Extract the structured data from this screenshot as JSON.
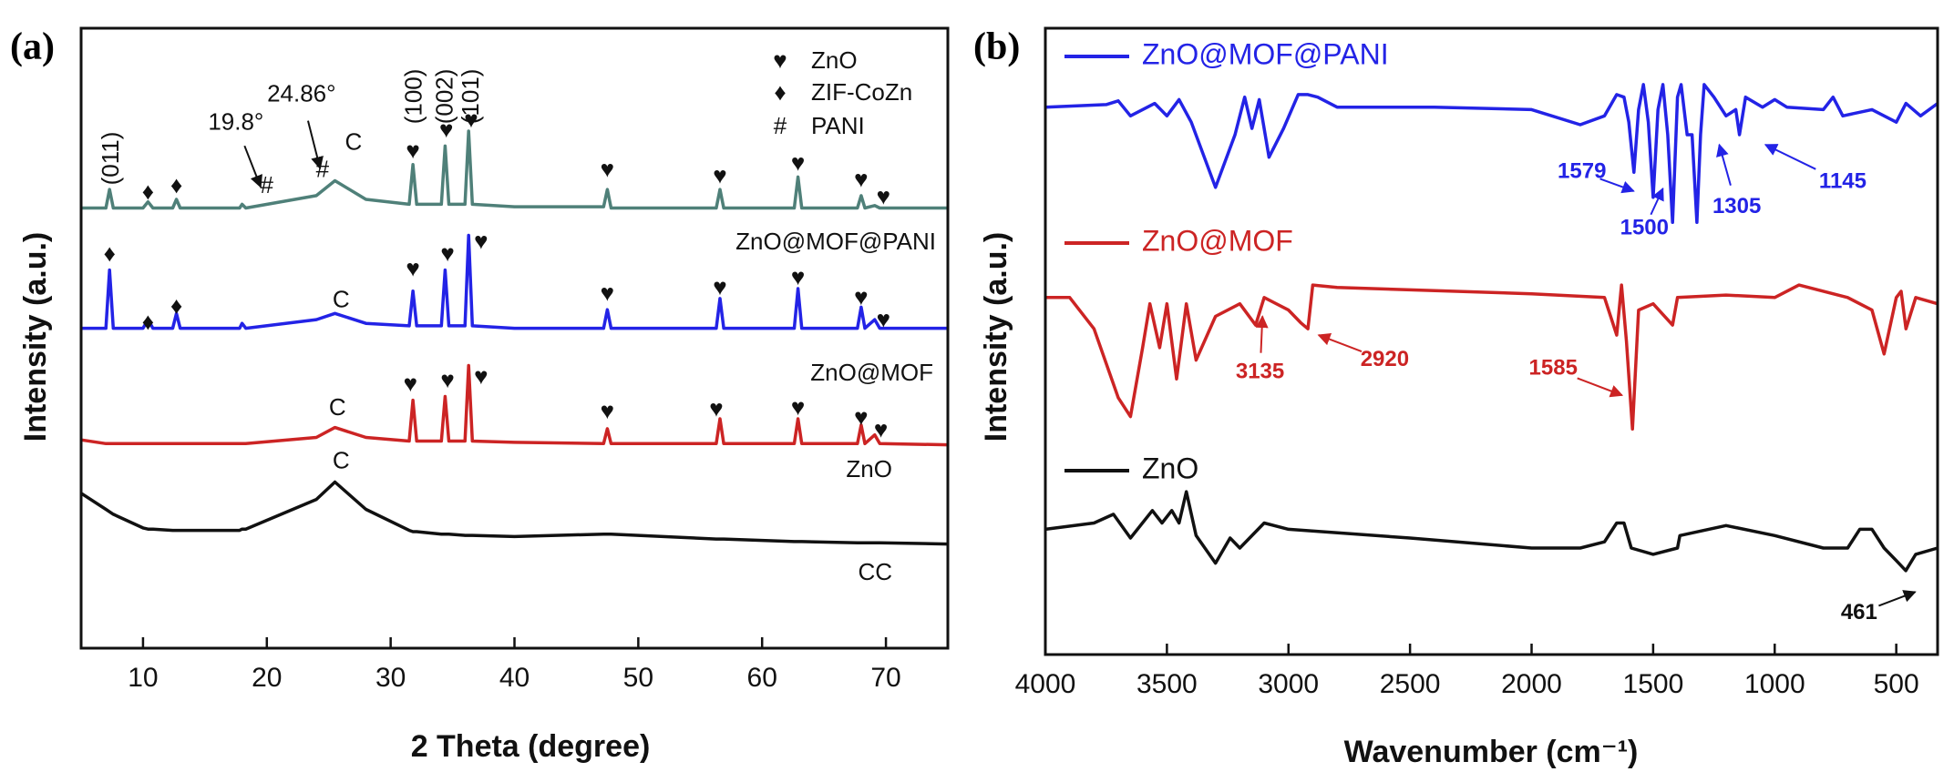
{
  "chart_data": [
    {
      "type": "line",
      "panel_label": "(a)",
      "xlabel": "2 Theta (degree)",
      "ylabel": "Intensity (a.u.)",
      "xlim": [
        5,
        75
      ],
      "xticks": [
        10,
        20,
        30,
        40,
        50,
        60,
        70
      ],
      "ylim": [
        0,
        500
      ],
      "x": [
        5,
        7,
        7.3,
        7.6,
        10,
        10.4,
        10.8,
        12.4,
        12.7,
        13,
        17.8,
        18,
        18.3,
        24,
        25.5,
        28,
        31.5,
        31.8,
        32.1,
        34.1,
        34.4,
        34.7,
        36,
        36.3,
        36.6,
        40,
        47.2,
        47.5,
        47.8,
        56.3,
        56.6,
        56.9,
        62.6,
        62.9,
        63.2,
        67.7,
        68,
        68.3,
        69.1,
        69.5,
        75
      ],
      "series": [
        {
          "name": "ZnO@MOF@PANI",
          "color": "#4f8079",
          "values": [
            355,
            355,
            370,
            355,
            355,
            360,
            355,
            355,
            362,
            355,
            355,
            358,
            355,
            365,
            377,
            362,
            358,
            390,
            358,
            358,
            405,
            358,
            358,
            417,
            358,
            356,
            356,
            370,
            355,
            355,
            370,
            355,
            355,
            380,
            355,
            355,
            365,
            355,
            357,
            355,
            355
          ]
        },
        {
          "name": "ZnO@MOF",
          "color": "#2323e6",
          "values": [
            258,
            258,
            305,
            258,
            258,
            265,
            258,
            258,
            270,
            258,
            258,
            262,
            258,
            265,
            270,
            262,
            260,
            288,
            260,
            260,
            305,
            260,
            260,
            333,
            260,
            258,
            258,
            273,
            258,
            258,
            282,
            258,
            258,
            290,
            258,
            258,
            275,
            258,
            265,
            258,
            258
          ]
        },
        {
          "name": "ZnO",
          "color": "#cc2424",
          "values": [
            168,
            165,
            165,
            165,
            165,
            165,
            165,
            165,
            165,
            165,
            165,
            165,
            165,
            170,
            178,
            170,
            167,
            200,
            167,
            167,
            203,
            167,
            167,
            228,
            167,
            166,
            165,
            177,
            165,
            165,
            185,
            165,
            165,
            185,
            165,
            165,
            180,
            165,
            172,
            165,
            164
          ]
        },
        {
          "name": "CC",
          "color": "#111111",
          "values": [
            125,
            112,
            110,
            108,
            97,
            96,
            96,
            95,
            95,
            95,
            95,
            96,
            96,
            120,
            134,
            112,
            95,
            94,
            94,
            92,
            92,
            92,
            91,
            91,
            91,
            90,
            92,
            92,
            92,
            88,
            88,
            88,
            86,
            86,
            86,
            85,
            85,
            85,
            85,
            85,
            84
          ]
        }
      ],
      "legend": [
        {
          "symbol": "♥",
          "label": "ZnO"
        },
        {
          "symbol": "♦",
          "label": "ZIF-CoZn"
        },
        {
          "symbol": "#",
          "label": "PANI"
        }
      ],
      "peak_labels": [
        {
          "text": "(011)",
          "x": 7.5,
          "y": 395
        },
        {
          "text": "(100)",
          "x": 32,
          "y": 445
        },
        {
          "text": "(002)",
          "x": 34.5,
          "y": 445
        },
        {
          "text": "(101)",
          "x": 36.6,
          "y": 445
        }
      ],
      "markers": [
        {
          "text": "♦",
          "x": 10.4,
          "y": 367
        },
        {
          "text": "♦",
          "x": 12.7,
          "y": 372
        },
        {
          "text": "#",
          "x": 20,
          "y": 372
        },
        {
          "text": "#",
          "x": 24.5,
          "y": 385
        },
        {
          "text": "C",
          "x": 27,
          "y": 407
        },
        {
          "text": "♥",
          "x": 31.8,
          "y": 400
        },
        {
          "text": "♥",
          "x": 34.5,
          "y": 417
        },
        {
          "text": "♥",
          "x": 36.5,
          "y": 425
        },
        {
          "text": "♥",
          "x": 47.5,
          "y": 385
        },
        {
          "text": "♥",
          "x": 56.6,
          "y": 380
        },
        {
          "text": "♥",
          "x": 62.9,
          "y": 390
        },
        {
          "text": "♥",
          "x": 68,
          "y": 377
        },
        {
          "text": "♥",
          "x": 69.8,
          "y": 363
        },
        {
          "text": "♦",
          "x": 7.3,
          "y": 317
        },
        {
          "text": "♦",
          "x": 10.4,
          "y": 262
        },
        {
          "text": "♦",
          "x": 12.7,
          "y": 275
        },
        {
          "text": "C",
          "x": 26,
          "y": 280
        },
        {
          "text": "♥",
          "x": 31.8,
          "y": 305
        },
        {
          "text": "♥",
          "x": 34.6,
          "y": 317
        },
        {
          "text": "♥",
          "x": 37.3,
          "y": 327
        },
        {
          "text": "♥",
          "x": 47.5,
          "y": 285
        },
        {
          "text": "♥",
          "x": 56.6,
          "y": 290
        },
        {
          "text": "♥",
          "x": 62.9,
          "y": 298
        },
        {
          "text": "♥",
          "x": 68,
          "y": 282
        },
        {
          "text": "♥",
          "x": 69.8,
          "y": 264
        },
        {
          "text": "C",
          "x": 25.7,
          "y": 193
        },
        {
          "text": "♥",
          "x": 31.6,
          "y": 212
        },
        {
          "text": "♥",
          "x": 34.6,
          "y": 215
        },
        {
          "text": "♥",
          "x": 37.3,
          "y": 218
        },
        {
          "text": "♥",
          "x": 47.5,
          "y": 190
        },
        {
          "text": "♥",
          "x": 56.3,
          "y": 192
        },
        {
          "text": "♥",
          "x": 62.9,
          "y": 193
        },
        {
          "text": "♥",
          "x": 68,
          "y": 185
        },
        {
          "text": "♥",
          "x": 69.6,
          "y": 175
        },
        {
          "text": "C",
          "x": 26,
          "y": 150
        }
      ],
      "notes": [
        {
          "text": "19.8°",
          "x": 17.5,
          "y": 423,
          "arrow": [
            19.5,
            372
          ]
        },
        {
          "text": "24.86°",
          "x": 22.8,
          "y": 446,
          "arrow": [
            24.3,
            387
          ]
        }
      ]
    },
    {
      "type": "line",
      "panel_label": "(b)",
      "xlabel": "Wavenumber (cm⁻¹)",
      "ylabel": "Intensity (a.u.)",
      "xlim": [
        4000,
        330
      ],
      "xticks": [
        4000,
        3500,
        3000,
        2500,
        2000,
        1500,
        1000,
        500
      ],
      "ylim": [
        0,
        500
      ],
      "series": [
        {
          "name": "ZnO@MOF@PANI",
          "color": "#2323e6",
          "x": [
            4000,
            3750,
            3700,
            3650,
            3550,
            3500,
            3450,
            3400,
            3300,
            3220,
            3180,
            3150,
            3120,
            3080,
            3020,
            2960,
            2920,
            2880,
            2800,
            2400,
            2000,
            1800,
            1700,
            1650,
            1620,
            1600,
            1579,
            1560,
            1540,
            1520,
            1500,
            1480,
            1460,
            1440,
            1420,
            1400,
            1385,
            1360,
            1340,
            1320,
            1305,
            1290,
            1250,
            1200,
            1160,
            1145,
            1120,
            1050,
            1000,
            950,
            800,
            760,
            720,
            600,
            500,
            460,
            400,
            330
          ],
          "values": [
            437,
            439,
            442,
            430,
            440,
            430,
            443,
            425,
            373,
            415,
            445,
            420,
            443,
            397,
            420,
            447,
            447,
            445,
            437,
            437,
            435,
            423,
            430,
            447,
            445,
            425,
            385,
            435,
            455,
            425,
            365,
            435,
            455,
            415,
            345,
            445,
            455,
            415,
            415,
            345,
            415,
            455,
            445,
            430,
            435,
            415,
            445,
            437,
            443,
            437,
            435,
            445,
            430,
            435,
            425,
            440,
            430,
            440
          ]
        },
        {
          "name": "ZnO@MOF",
          "color": "#cc2424",
          "x": [
            4000,
            3900,
            3800,
            3700,
            3650,
            3600,
            3570,
            3530,
            3500,
            3460,
            3420,
            3380,
            3300,
            3200,
            3135,
            3100,
            3000,
            2950,
            2920,
            2900,
            2800,
            2000,
            1700,
            1650,
            1630,
            1610,
            1585,
            1560,
            1500,
            1420,
            1400,
            1200,
            1000,
            900,
            700,
            600,
            550,
            500,
            480,
            460,
            420,
            330
          ],
          "values": [
            285,
            285,
            260,
            205,
            190,
            245,
            280,
            245,
            280,
            220,
            280,
            235,
            270,
            280,
            263,
            285,
            275,
            265,
            260,
            295,
            293,
            288,
            285,
            255,
            295,
            250,
            180,
            275,
            280,
            263,
            285,
            287,
            285,
            295,
            285,
            275,
            240,
            285,
            290,
            260,
            285,
            280
          ]
        },
        {
          "name": "ZnO",
          "color": "#111111",
          "x": [
            4000,
            3800,
            3720,
            3650,
            3560,
            3520,
            3480,
            3450,
            3420,
            3380,
            3300,
            3240,
            3200,
            3100,
            3000,
            2500,
            2000,
            1800,
            1700,
            1650,
            1620,
            1590,
            1500,
            1400,
            1390,
            1200,
            1000,
            800,
            700,
            650,
            600,
            550,
            500,
            461,
            420,
            330
          ],
          "values": [
            100,
            105,
            112,
            93,
            115,
            105,
            115,
            105,
            130,
            95,
            73,
            93,
            85,
            105,
            100,
            93,
            85,
            85,
            90,
            105,
            105,
            85,
            80,
            85,
            95,
            103,
            95,
            85,
            85,
            100,
            100,
            85,
            75,
            67,
            80,
            85
          ]
        }
      ],
      "notes": [
        {
          "text": "1579",
          "x": 1793,
          "y": 385,
          "arrow": [
            1580,
            370
          ],
          "color": "#2323e6"
        },
        {
          "text": "1500",
          "x": 1536,
          "y": 340,
          "arrow": [
            1460,
            372
          ],
          "color": "#2323e6"
        },
        {
          "text": "1305",
          "x": 1156,
          "y": 357,
          "arrow": [
            1228,
            407
          ],
          "color": "#2323e6"
        },
        {
          "text": "1145",
          "x": 720,
          "y": 377,
          "arrow": [
            1038,
            407
          ],
          "color": "#2323e6"
        },
        {
          "text": "3135",
          "x": 3117,
          "y": 225,
          "arrow": [
            3107,
            270
          ],
          "color": "#cc2424"
        },
        {
          "text": "2920",
          "x": 2604,
          "y": 235,
          "arrow": [
            2876,
            255
          ],
          "color": "#cc2424"
        },
        {
          "text": "1585",
          "x": 1911,
          "y": 228,
          "arrow": [
            1628,
            207
          ],
          "color": "#cc2424"
        },
        {
          "text": "461",
          "x": 653,
          "y": 33,
          "arrow": [
            422,
            50
          ],
          "color": "#111111"
        }
      ]
    }
  ]
}
